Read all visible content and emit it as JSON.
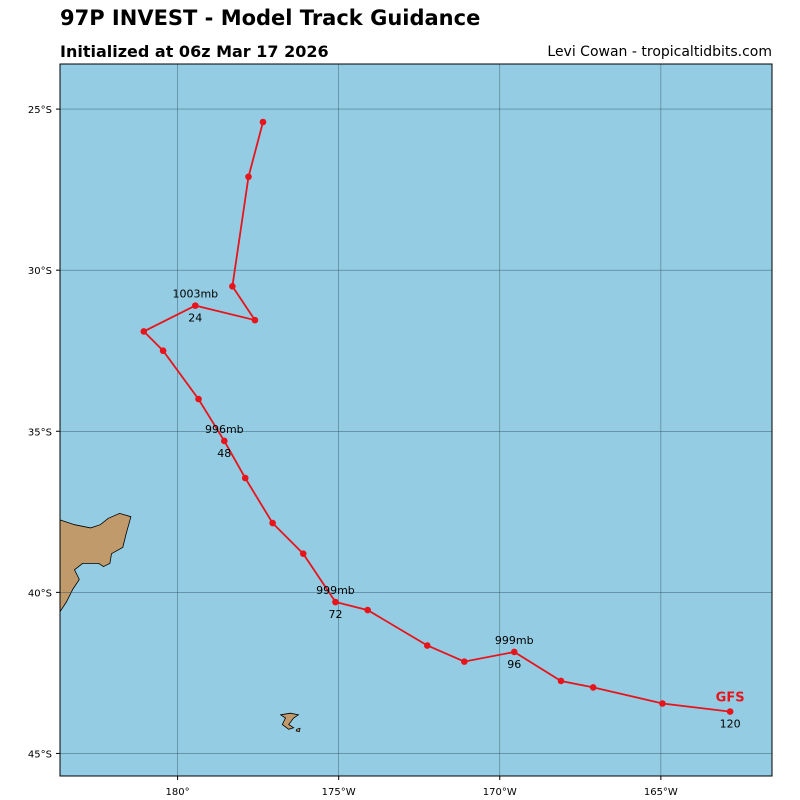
{
  "header": {
    "title": "97P INVEST - Model Track Guidance",
    "subtitle": "Initialized at 06z Mar 17 2026",
    "credit": "Levi Cowan - tropicaltidbits.com"
  },
  "colors": {
    "ocean": "#94cde3",
    "land": "#c19a6b",
    "track": "#e8141c",
    "grid": "#2f4f5f"
  },
  "map": {
    "lon_range": [
      176.35,
      198.45
    ],
    "lat_range": [
      -45.7,
      -23.6
    ],
    "x_ticks": [
      {
        "lon": 180,
        "label": "180°"
      },
      {
        "lon": 185,
        "label": "175°W"
      },
      {
        "lon": 190,
        "label": "170°W"
      },
      {
        "lon": 195,
        "label": "165°W"
      }
    ],
    "y_ticks": [
      {
        "lat": -25,
        "label": "25°S"
      },
      {
        "lat": -30,
        "label": "30°S"
      },
      {
        "lat": -35,
        "label": "35°S"
      },
      {
        "lat": -40,
        "label": "40°S"
      },
      {
        "lat": -45,
        "label": "45°S"
      }
    ],
    "land": [
      {
        "name": "new-zealand-north-island",
        "coords": [
          [
            176.35,
            -37.75
          ],
          [
            176.8,
            -37.9
          ],
          [
            177.3,
            -38.0
          ],
          [
            177.6,
            -37.9
          ],
          [
            177.85,
            -37.7
          ],
          [
            178.2,
            -37.55
          ],
          [
            178.55,
            -37.65
          ],
          [
            178.4,
            -38.2
          ],
          [
            178.3,
            -38.6
          ],
          [
            177.95,
            -38.8
          ],
          [
            177.9,
            -39.1
          ],
          [
            177.7,
            -39.2
          ],
          [
            177.55,
            -39.1
          ],
          [
            177.05,
            -39.1
          ],
          [
            176.8,
            -39.3
          ],
          [
            176.95,
            -39.6
          ],
          [
            176.75,
            -39.9
          ],
          [
            176.55,
            -40.3
          ],
          [
            176.35,
            -40.6
          ]
        ]
      },
      {
        "name": "chatham-island",
        "coords": [
          [
            183.2,
            -43.8
          ],
          [
            183.5,
            -43.75
          ],
          [
            183.75,
            -43.8
          ],
          [
            183.6,
            -43.9
          ],
          [
            183.45,
            -44.1
          ],
          [
            183.6,
            -44.2
          ],
          [
            183.45,
            -44.25
          ],
          [
            183.25,
            -44.1
          ],
          [
            183.35,
            -43.9
          ]
        ]
      },
      {
        "name": "pitt-island",
        "coords": [
          [
            183.7,
            -44.25
          ],
          [
            183.8,
            -44.22
          ],
          [
            183.78,
            -44.32
          ],
          [
            183.68,
            -44.3
          ]
        ]
      }
    ]
  },
  "chart_data": {
    "type": "line",
    "title": "97P INVEST - Model Track Guidance",
    "x_axis": "longitude",
    "y_axis": "latitude",
    "series": [
      {
        "name": "GFS",
        "points": [
          {
            "lon": 182.65,
            "lat": -25.4
          },
          {
            "lon": 182.2,
            "lat": -27.1
          },
          {
            "lon": 181.7,
            "lat": -30.5
          },
          {
            "lon": 182.4,
            "lat": -31.55
          },
          {
            "lon": 180.55,
            "lat": -31.1
          },
          {
            "lon": 178.95,
            "lat": -31.9
          },
          {
            "lon": 179.55,
            "lat": -32.5
          },
          {
            "lon": 180.65,
            "lat": -34.0
          },
          {
            "lon": 181.45,
            "lat": -35.3
          },
          {
            "lon": 182.1,
            "lat": -36.45
          },
          {
            "lon": 182.95,
            "lat": -37.85
          },
          {
            "lon": 183.9,
            "lat": -38.8
          },
          {
            "lon": 184.9,
            "lat": -40.3
          },
          {
            "lon": 185.9,
            "lat": -40.55
          },
          {
            "lon": 187.75,
            "lat": -41.65
          },
          {
            "lon": 188.9,
            "lat": -42.15
          },
          {
            "lon": 190.45,
            "lat": -41.85
          },
          {
            "lon": 191.9,
            "lat": -42.75
          },
          {
            "lon": 192.9,
            "lat": -42.95
          },
          {
            "lon": 195.05,
            "lat": -43.45
          },
          {
            "lon": 197.15,
            "lat": -43.7
          }
        ],
        "labels": [
          {
            "index": 4,
            "pressure": "1003mb",
            "hour": "24"
          },
          {
            "index": 8,
            "pressure": "996mb",
            "hour": "48"
          },
          {
            "index": 12,
            "pressure": "999mb",
            "hour": "72"
          },
          {
            "index": 16,
            "pressure": "999mb",
            "hour": "96"
          },
          {
            "index": 20,
            "pressure": "",
            "hour": "120"
          }
        ]
      }
    ]
  }
}
